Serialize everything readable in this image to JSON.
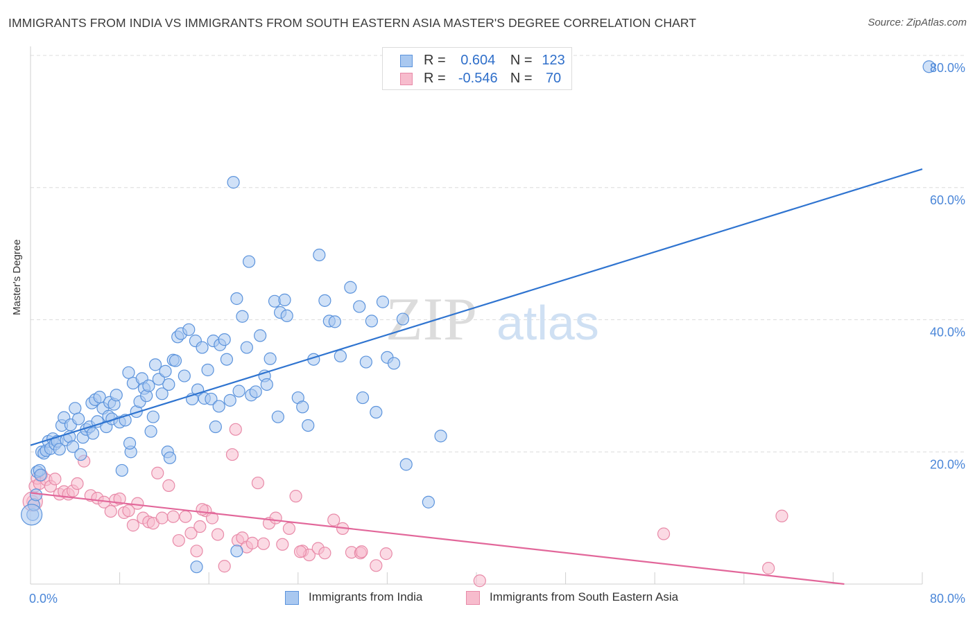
{
  "title": "IMMIGRANTS FROM INDIA VS IMMIGRANTS FROM SOUTH EASTERN ASIA MASTER'S DEGREE CORRELATION CHART",
  "source": "Source: ZipAtlas.com",
  "watermark": {
    "zip": "ZIP",
    "atlas": "atlas"
  },
  "legend_top": [
    {
      "r_label": "R =",
      "r_value": "0.604",
      "n_label": "N =",
      "n_value": "123"
    },
    {
      "r_label": "R =",
      "r_value": "-0.546",
      "n_label": "N =",
      "n_value": "70"
    }
  ],
  "legend_bottom": [
    {
      "label": "Immigrants from India"
    },
    {
      "label": "Immigrants from South Eastern Asia"
    }
  ],
  "colors": {
    "india_fill": "#a9c8f0",
    "india_stroke": "#5b93dc",
    "india_line": "#2f74d0",
    "sea_fill": "#f7bccd",
    "sea_stroke": "#e88aa8",
    "sea_line": "#e2679a",
    "tick_label": "#4a86d8",
    "grid": "#dcdcdc"
  },
  "chart_data": {
    "type": "scatter",
    "ylabel": "Master's Degree",
    "xlim": [
      0,
      80
    ],
    "ylim": [
      0,
      80
    ],
    "x_tick_labels": [
      "0.0%",
      "80.0%"
    ],
    "y_ticks": [
      20,
      40,
      60,
      80
    ],
    "y_tick_labels": [
      "20.0%",
      "40.0%",
      "60.0%",
      "80.0%"
    ],
    "grid": true,
    "legend_position": "top-center",
    "series": [
      {
        "name": "Immigrants from India",
        "trend": {
          "x": [
            0,
            80
          ],
          "y": [
            21.0,
            62.8
          ]
        },
        "points": [
          [
            0.2,
            10.5
          ],
          [
            0.3,
            12.0
          ],
          [
            0.5,
            13.5
          ],
          [
            0.6,
            17.0
          ],
          [
            0.8,
            17.2
          ],
          [
            0.9,
            16.5
          ],
          [
            1.0,
            20.0
          ],
          [
            1.2,
            19.8
          ],
          [
            1.4,
            20.2
          ],
          [
            1.6,
            21.6
          ],
          [
            1.8,
            20.5
          ],
          [
            2.0,
            22.0
          ],
          [
            2.2,
            21.2
          ],
          [
            2.4,
            21.6
          ],
          [
            2.6,
            20.4
          ],
          [
            2.8,
            24.0
          ],
          [
            3.0,
            25.2
          ],
          [
            3.2,
            21.8
          ],
          [
            3.5,
            22.3
          ],
          [
            3.6,
            24.1
          ],
          [
            3.8,
            20.8
          ],
          [
            4.0,
            26.6
          ],
          [
            4.3,
            25.0
          ],
          [
            4.5,
            19.6
          ],
          [
            4.7,
            22.2
          ],
          [
            5.0,
            23.4
          ],
          [
            5.3,
            23.8
          ],
          [
            5.5,
            27.4
          ],
          [
            5.8,
            27.9
          ],
          [
            6.0,
            24.6
          ],
          [
            6.2,
            28.3
          ],
          [
            6.5,
            26.6
          ],
          [
            6.8,
            23.8
          ],
          [
            7.0,
            25.4
          ],
          [
            7.1,
            27.5
          ],
          [
            7.3,
            25.0
          ],
          [
            7.5,
            27.2
          ],
          [
            7.7,
            28.6
          ],
          [
            8.0,
            24.5
          ],
          [
            8.2,
            17.2
          ],
          [
            8.5,
            24.8
          ],
          [
            8.8,
            32.0
          ],
          [
            9.0,
            20.0
          ],
          [
            9.2,
            30.4
          ],
          [
            9.5,
            26.1
          ],
          [
            9.8,
            27.6
          ],
          [
            10.0,
            31.1
          ],
          [
            10.2,
            29.6
          ],
          [
            10.4,
            28.5
          ],
          [
            10.6,
            30.0
          ],
          [
            10.8,
            23.1
          ],
          [
            11.0,
            25.3
          ],
          [
            11.2,
            33.2
          ],
          [
            11.5,
            31.0
          ],
          [
            11.8,
            28.8
          ],
          [
            12.1,
            32.2
          ],
          [
            12.3,
            20.0
          ],
          [
            12.5,
            19.1
          ],
          [
            12.8,
            33.9
          ],
          [
            13.0,
            33.8
          ],
          [
            13.2,
            37.4
          ],
          [
            13.5,
            37.9
          ],
          [
            13.8,
            31.5
          ],
          [
            14.2,
            38.5
          ],
          [
            14.5,
            28.0
          ],
          [
            14.8,
            36.8
          ],
          [
            15.0,
            29.4
          ],
          [
            15.4,
            35.8
          ],
          [
            15.6,
            28.1
          ],
          [
            15.9,
            32.4
          ],
          [
            16.2,
            28.0
          ],
          [
            16.4,
            36.8
          ],
          [
            16.6,
            23.8
          ],
          [
            17.0,
            36.2
          ],
          [
            17.4,
            37.0
          ],
          [
            17.6,
            34.0
          ],
          [
            17.9,
            27.8
          ],
          [
            18.2,
            60.8
          ],
          [
            18.5,
            43.2
          ],
          [
            18.7,
            29.2
          ],
          [
            19.0,
            40.5
          ],
          [
            19.4,
            35.8
          ],
          [
            19.6,
            48.8
          ],
          [
            19.8,
            28.6
          ],
          [
            20.2,
            29.1
          ],
          [
            20.6,
            37.6
          ],
          [
            21.0,
            31.5
          ],
          [
            21.2,
            30.2
          ],
          [
            21.5,
            34.1
          ],
          [
            21.9,
            42.8
          ],
          [
            22.2,
            25.3
          ],
          [
            22.4,
            41.1
          ],
          [
            22.8,
            43.0
          ],
          [
            23.0,
            40.6
          ],
          [
            24.0,
            28.2
          ],
          [
            24.4,
            26.8
          ],
          [
            24.9,
            24.0
          ],
          [
            25.4,
            34.0
          ],
          [
            25.9,
            49.8
          ],
          [
            26.4,
            42.9
          ],
          [
            26.8,
            39.8
          ],
          [
            27.8,
            34.5
          ],
          [
            28.7,
            44.9
          ],
          [
            29.5,
            42.0
          ],
          [
            30.1,
            33.6
          ],
          [
            30.6,
            39.8
          ],
          [
            31.0,
            26.0
          ],
          [
            31.6,
            42.7
          ],
          [
            32.0,
            34.3
          ],
          [
            32.6,
            33.4
          ],
          [
            33.7,
            18.1
          ],
          [
            35.7,
            12.4
          ],
          [
            36.8,
            22.4
          ],
          [
            18.5,
            5.0
          ],
          [
            14.9,
            2.6
          ],
          [
            29.8,
            28.2
          ],
          [
            80.6,
            78.3
          ],
          [
            12.4,
            30.2
          ],
          [
            8.9,
            21.3
          ],
          [
            5.6,
            22.8
          ],
          [
            16.9,
            26.9
          ],
          [
            27.3,
            39.7
          ],
          [
            33.4,
            40.1
          ]
        ]
      },
      {
        "name": "Immigrants from South Eastern Asia",
        "trend": {
          "x": [
            0,
            73
          ],
          "y": [
            13.8,
            0
          ]
        },
        "points": [
          [
            0.2,
            12.5
          ],
          [
            0.4,
            14.8
          ],
          [
            0.6,
            16.0
          ],
          [
            0.8,
            15.2
          ],
          [
            1.0,
            16.5
          ],
          [
            1.4,
            15.8
          ],
          [
            1.8,
            14.8
          ],
          [
            2.2,
            15.9
          ],
          [
            2.6,
            13.6
          ],
          [
            3.0,
            14.0
          ],
          [
            3.4,
            13.6
          ],
          [
            3.8,
            14.1
          ],
          [
            4.2,
            15.2
          ],
          [
            4.8,
            18.6
          ],
          [
            5.4,
            13.4
          ],
          [
            6.0,
            13.0
          ],
          [
            6.6,
            12.4
          ],
          [
            7.2,
            11.0
          ],
          [
            7.6,
            12.7
          ],
          [
            8.0,
            12.9
          ],
          [
            8.4,
            10.8
          ],
          [
            8.8,
            11.1
          ],
          [
            9.2,
            8.9
          ],
          [
            9.6,
            12.2
          ],
          [
            10.1,
            10.0
          ],
          [
            10.6,
            9.4
          ],
          [
            11.0,
            9.2
          ],
          [
            11.4,
            16.8
          ],
          [
            11.8,
            10.0
          ],
          [
            12.4,
            14.9
          ],
          [
            12.8,
            10.2
          ],
          [
            13.3,
            6.6
          ],
          [
            13.9,
            10.2
          ],
          [
            14.4,
            7.7
          ],
          [
            14.9,
            5.0
          ],
          [
            15.2,
            8.7
          ],
          [
            15.7,
            11.1
          ],
          [
            16.3,
            10.0
          ],
          [
            16.8,
            7.5
          ],
          [
            17.4,
            2.7
          ],
          [
            18.1,
            19.6
          ],
          [
            18.6,
            6.6
          ],
          [
            19.0,
            7.0
          ],
          [
            19.4,
            5.6
          ],
          [
            19.9,
            6.2
          ],
          [
            20.4,
            15.3
          ],
          [
            20.9,
            6.1
          ],
          [
            21.4,
            9.2
          ],
          [
            22.0,
            10.0
          ],
          [
            22.6,
            6.0
          ],
          [
            23.2,
            8.4
          ],
          [
            23.8,
            13.3
          ],
          [
            24.4,
            5.0
          ],
          [
            25.0,
            4.4
          ],
          [
            25.8,
            5.4
          ],
          [
            26.4,
            4.7
          ],
          [
            27.2,
            9.7
          ],
          [
            28.0,
            8.4
          ],
          [
            28.8,
            4.8
          ],
          [
            29.6,
            4.7
          ],
          [
            31.0,
            2.8
          ],
          [
            18.4,
            23.4
          ],
          [
            31.9,
            4.6
          ],
          [
            29.7,
            4.9
          ],
          [
            15.4,
            11.3
          ],
          [
            40.3,
            0.5
          ],
          [
            56.8,
            7.6
          ],
          [
            67.4,
            10.3
          ],
          [
            66.2,
            2.4
          ],
          [
            24.2,
            4.9
          ]
        ]
      }
    ]
  }
}
